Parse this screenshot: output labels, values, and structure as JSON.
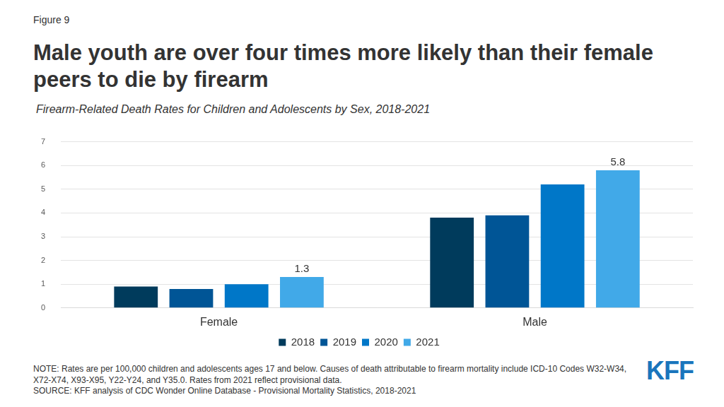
{
  "chart_data": {
    "type": "bar",
    "figure_label": "Figure 9",
    "title": "Male youth are over four times more likely than their female peers to die by firearm",
    "subtitle": "Firearm-Related Death Rates for Children and Adolescents by Sex, 2018-2021",
    "categories": [
      "Female",
      "Male"
    ],
    "series": [
      {
        "name": "2018",
        "color": "#003b5c",
        "values": [
          0.9,
          3.8
        ]
      },
      {
        "name": "2019",
        "color": "#005596",
        "values": [
          0.8,
          3.9
        ]
      },
      {
        "name": "2020",
        "color": "#0077c8",
        "values": [
          1.0,
          5.2
        ]
      },
      {
        "name": "2021",
        "color": "#41a9e8",
        "values": [
          1.3,
          5.8
        ],
        "data_labels": true
      }
    ],
    "ylim": [
      0,
      7
    ],
    "yticks": [
      0,
      1,
      2,
      3,
      4,
      5,
      6,
      7
    ],
    "grid": true,
    "legend": "bottom",
    "note": "NOTE: Rates are per 100,000 children and adolescents ages 17 and below. Causes of death attributable to firearm mortality include ICD-10 Codes W32-W34, X72-X74, X93-X95, Y22-Y24, and Y35.0. Rates from 2021 reflect provisional data.",
    "source": "SOURCE: KFF analysis of CDC Wonder Online Database - Provisional Mortality Statistics, 2018-2021",
    "logo": "KFF"
  }
}
